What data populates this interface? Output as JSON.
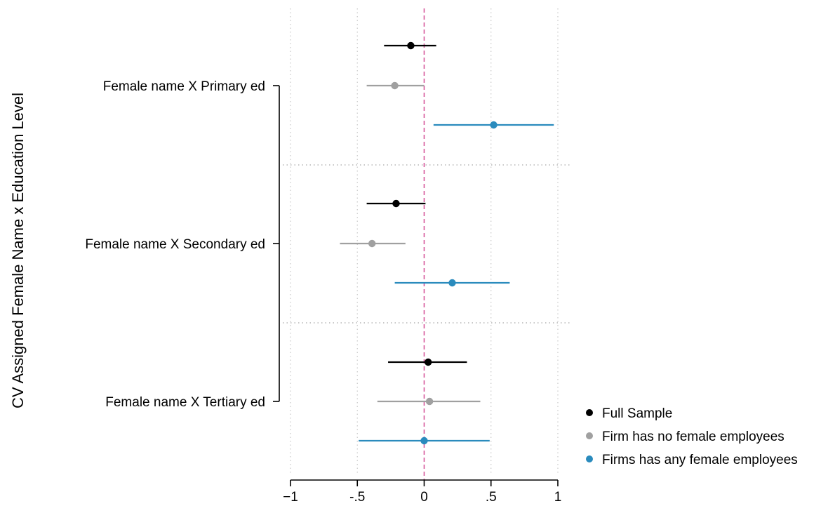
{
  "chart_data": {
    "type": "scatter",
    "subtype": "coefficient-plot-horizontal-ci",
    "title": "",
    "ylabel": "CV Assigned Female Name x Education Level",
    "xlabel": "",
    "xlim": [
      -1,
      1
    ],
    "x_ticks": [
      {
        "value": -1,
        "label": "−1"
      },
      {
        "value": -0.5,
        "label": "-.5"
      },
      {
        "value": 0,
        "label": "0"
      },
      {
        "value": 0.5,
        "label": ".5"
      },
      {
        "value": 1,
        "label": "1"
      }
    ],
    "reference_line": {
      "x": 0,
      "style": "dashed",
      "color": "#d6549a"
    },
    "grid": "dotted-vertical-at-ticks",
    "categories": [
      "Female name X Primary ed",
      "Female name X Secondary ed",
      "Female name X Tertiary ed"
    ],
    "series": [
      {
        "name": "Full Sample",
        "color": "#000000",
        "points": [
          {
            "estimate": -0.1,
            "ci_low": -0.3,
            "ci_high": 0.09
          },
          {
            "estimate": -0.21,
            "ci_low": -0.43,
            "ci_high": 0.01
          },
          {
            "estimate": 0.03,
            "ci_low": -0.27,
            "ci_high": 0.32
          }
        ]
      },
      {
        "name": "Firm has no female employees",
        "color": "#a0a0a0",
        "points": [
          {
            "estimate": -0.22,
            "ci_low": -0.43,
            "ci_high": 0.0
          },
          {
            "estimate": -0.39,
            "ci_low": -0.63,
            "ci_high": -0.14
          },
          {
            "estimate": 0.04,
            "ci_low": -0.35,
            "ci_high": 0.42
          }
        ]
      },
      {
        "name": "Firms has any female employees",
        "color": "#2a8bbd",
        "points": [
          {
            "estimate": 0.52,
            "ci_low": 0.07,
            "ci_high": 0.97
          },
          {
            "estimate": 0.21,
            "ci_low": -0.22,
            "ci_high": 0.64
          },
          {
            "estimate": 0.0,
            "ci_low": -0.49,
            "ci_high": 0.49
          }
        ]
      }
    ],
    "legend_position": "bottom-right"
  }
}
